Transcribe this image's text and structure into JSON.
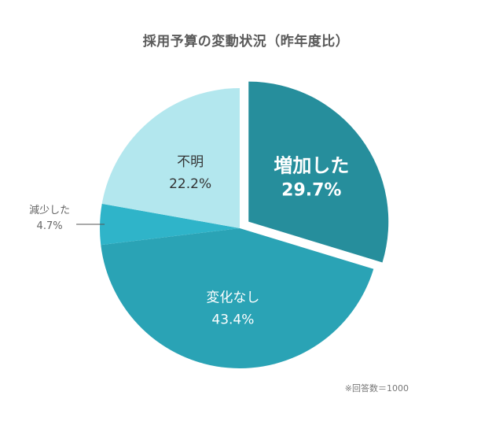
{
  "chart_data": {
    "type": "pie",
    "title": "採用予算の変動状況（昨年度比）",
    "unit": "%",
    "slices": [
      {
        "label": "増加した",
        "value": 29.7,
        "value_text": "29.7%",
        "color": "#268e9c",
        "exploded": true,
        "label_color": "#ffffff",
        "label_weight": "bold"
      },
      {
        "label": "変化なし",
        "value": 43.4,
        "value_text": "43.4%",
        "color": "#2aa3b5",
        "exploded": false,
        "label_color": "#ffffff",
        "label_weight": "normal"
      },
      {
        "label": "減少した",
        "value": 4.7,
        "value_text": "4.7%",
        "color": "#2fb4c9",
        "exploded": false,
        "label_color": "#666666",
        "label_weight": "normal",
        "outside": true
      },
      {
        "label": "不明",
        "value": 22.2,
        "value_text": "22.2%",
        "color": "#b3e7ee",
        "exploded": false,
        "label_color": "#333333",
        "label_weight": "normal"
      }
    ],
    "note": "※回答数＝1000"
  }
}
